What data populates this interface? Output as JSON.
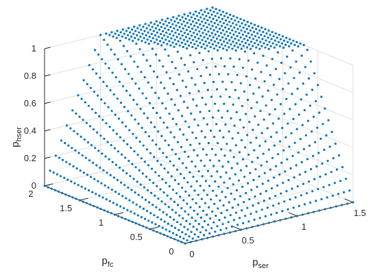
{
  "chart_data": {
    "type": "scatter",
    "projection": "3d",
    "xlabel": "p",
    "xlabel_sub": "ser",
    "ylabel": "p",
    "ylabel_sub": "fc",
    "zlabel": "p",
    "zlabel_sub": "hser",
    "xlim": [
      0,
      1.5
    ],
    "ylim": [
      0,
      2
    ],
    "zlim": [
      0,
      1
    ],
    "xticks": [
      "0",
      "0.5",
      "1",
      "1.5"
    ],
    "yticks": [
      "0",
      "0.5",
      "1",
      "1.5",
      "2"
    ],
    "zticks": [
      "0",
      "0.2",
      "0.4",
      "0.6",
      "0.8",
      "1"
    ],
    "grid": true,
    "marker_color": "#0072BD",
    "grid_step": 0.05,
    "surface": "z = min(1, x * y)",
    "points_description": "regular grid with spacing 0.05 over x in [0,1.5], y in [0,2]; z = min(1, x*y)"
  }
}
